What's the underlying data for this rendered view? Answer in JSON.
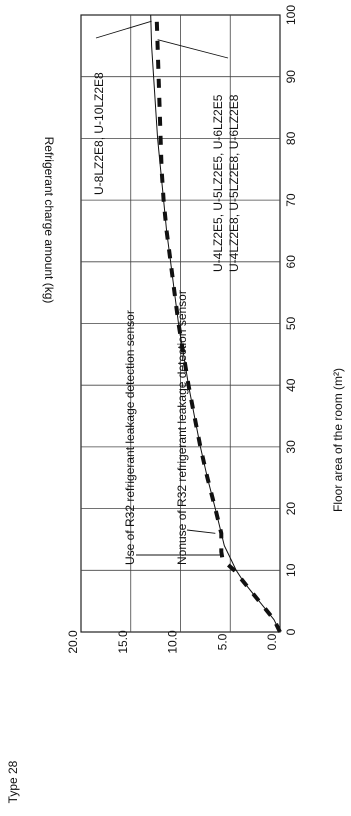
{
  "page": {
    "type_label": "Type 28"
  },
  "chart_data": {
    "type": "line",
    "orientation": "rotated-90-clockwise",
    "xlabel": "Floor area of the room (m²)",
    "ylabel": "Refrigerant charge amount (kg)",
    "xlim": [
      0,
      100
    ],
    "ylim": [
      0,
      20
    ],
    "x_ticks": [
      0,
      10,
      20,
      30,
      40,
      50,
      60,
      70,
      80,
      90,
      100
    ],
    "x_tick_labels": [
      "0",
      "10",
      "20",
      "30",
      "40",
      "50",
      "60",
      "70",
      "80",
      "90",
      "100"
    ],
    "y_ticks": [
      0,
      5,
      10,
      15,
      20
    ],
    "y_tick_labels": [
      "0.0",
      "5.0",
      "10.0",
      "15.0",
      "20.0"
    ],
    "grid": true,
    "series": [
      {
        "name": "Nonuse of R32 refrigerant leakage detection sensor",
        "style": "solid-thin",
        "points": [
          [
            0,
            0
          ],
          [
            2,
            0.6
          ],
          [
            4,
            1.6
          ],
          [
            6,
            2.6
          ],
          [
            8,
            3.6
          ],
          [
            10,
            4.4
          ],
          [
            12,
            5.0
          ],
          [
            14,
            5.6
          ],
          [
            16,
            5.9
          ],
          [
            18,
            6.2
          ],
          [
            20,
            6.5
          ],
          [
            25,
            7.3
          ],
          [
            30,
            8.0
          ],
          [
            35,
            8.6
          ],
          [
            40,
            9.2
          ],
          [
            45,
            9.7
          ],
          [
            50,
            10.2
          ],
          [
            55,
            10.6
          ],
          [
            60,
            11.0
          ],
          [
            65,
            11.4
          ],
          [
            70,
            11.7
          ],
          [
            75,
            12.0
          ],
          [
            80,
            12.3
          ],
          [
            85,
            12.5
          ],
          [
            90,
            12.7
          ],
          [
            95,
            12.9
          ],
          [
            100,
            13.0
          ]
        ]
      },
      {
        "name": "Use of R32 refrigerant leakage detection sensor",
        "style": "dashed-thick",
        "points": [
          [
            0,
            0
          ],
          [
            2,
            0.6
          ],
          [
            4,
            1.6
          ],
          [
            6,
            2.6
          ],
          [
            8,
            3.6
          ],
          [
            10,
            4.6
          ],
          [
            11,
            5.3
          ],
          [
            12,
            5.8
          ],
          [
            13,
            5.9
          ],
          [
            16,
            5.9
          ],
          [
            18,
            6.2
          ],
          [
            20,
            6.5
          ],
          [
            25,
            7.3
          ],
          [
            30,
            8.0
          ],
          [
            35,
            8.6
          ],
          [
            40,
            9.2
          ],
          [
            45,
            9.7
          ],
          [
            50,
            10.2
          ],
          [
            55,
            10.6
          ],
          [
            60,
            11.0
          ],
          [
            65,
            11.4
          ],
          [
            70,
            11.7
          ],
          [
            75,
            11.9
          ],
          [
            80,
            12.0
          ],
          [
            85,
            12.1
          ],
          [
            90,
            12.2
          ],
          [
            95,
            12.3
          ],
          [
            100,
            12.4
          ]
        ]
      }
    ],
    "annotations": [
      {
        "id": "use_sensor",
        "text": "Use of R32 refrigerant leakage detection sensor",
        "target": [
          12.5,
          5.8
        ]
      },
      {
        "id": "nonuse_sensor",
        "text": "Nonuse of R32 refrigerant leakage detection sensor",
        "target": [
          16,
          6.5
        ]
      },
      {
        "id": "models_8_10",
        "text": "U-8LZ2E8, U-10LZ2E8",
        "target": [
          99,
          12.9
        ]
      },
      {
        "id": "models_4_6_line1",
        "text": "U-4LZ2E5, U-5LZ2E5, U-6LZ2E5",
        "target": [
          96,
          12.3
        ]
      },
      {
        "id": "models_4_6_line2",
        "text": "U-4LZ2E8, U-5LZ2E8, U-6LZ2E8"
      }
    ]
  }
}
